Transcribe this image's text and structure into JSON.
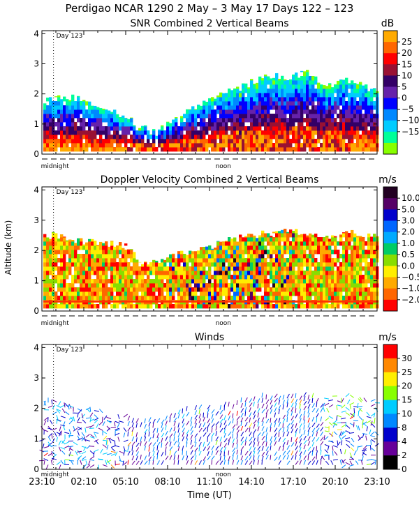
{
  "figure_title": "Perdigao NCAR 1290    2 May –  3 May 17 Days 122 – 123",
  "ylabel": "Altitude (km)",
  "xlabel": "Time (UT)",
  "xticks": [
    "23:10",
    "02:10",
    "05:10",
    "08:10",
    "11:10",
    "14:10",
    "17:10",
    "20:10",
    "23:10"
  ],
  "markers": {
    "day": "Day 123",
    "midnight": "midnight",
    "noon": "noon"
  },
  "colors": {
    "missing": "#ffffff",
    "axis": "#000000"
  },
  "chart_data": [
    {
      "type": "heatmap",
      "title": "SNR Combined 2 Vertical Beams",
      "ylim": [
        0,
        4.1
      ],
      "yticks": [
        "0",
        "1",
        "2",
        "3",
        "4"
      ],
      "colorbar": {
        "unit": "dB",
        "labels": [
          "25",
          "20",
          "15",
          "10",
          "5",
          "0",
          "−5",
          "−10",
          "−15"
        ],
        "colors": [
          "#ffaa00",
          "#ff6600",
          "#ff0000",
          "#991133",
          "#330066",
          "#6622aa",
          "#0000ff",
          "#0088ff",
          "#00ccff",
          "#00ff99",
          "#88ff00"
        ]
      },
      "profile": {
        "hours": [
          0,
          1,
          2,
          3,
          4,
          5,
          6,
          7,
          8,
          9,
          10,
          11,
          12,
          13,
          14,
          15,
          16,
          17,
          18,
          19,
          20,
          21,
          22,
          23,
          24
        ],
        "top_km": [
          1.8,
          1.9,
          1.9,
          1.8,
          1.5,
          1.5,
          1.2,
          0.9,
          0.7,
          1.0,
          1.3,
          1.6,
          1.8,
          2.0,
          2.2,
          2.4,
          2.6,
          2.6,
          2.6,
          2.7,
          2.4,
          2.3,
          2.5,
          2.2,
          2.2
        ]
      }
    },
    {
      "type": "heatmap",
      "title": "Doppler Velocity Combined 2 Vertical Beams",
      "ylim": [
        0,
        4.1
      ],
      "yticks": [
        "0",
        "1",
        "2",
        "3",
        "4"
      ],
      "colorbar": {
        "unit": "m/s",
        "labels": [
          "10.0",
          "5.0",
          "3.0",
          "2.0",
          "1.0",
          "0.5",
          "0.0",
          "−0.5",
          "−1.0",
          "−2.0"
        ],
        "colors": [
          "#220022",
          "#550066",
          "#0000cc",
          "#0066ff",
          "#00aaff",
          "#00cc66",
          "#88dd00",
          "#ffee00",
          "#ffaa00",
          "#ff6600",
          "#ff0000"
        ]
      },
      "profile": {
        "hours": [
          0,
          1,
          2,
          3,
          4,
          5,
          6,
          7,
          8,
          9,
          10,
          11,
          12,
          13,
          14,
          15,
          16,
          17,
          18,
          19,
          20,
          21,
          22,
          23,
          24
        ],
        "top_km": [
          2.5,
          2.5,
          2.4,
          2.3,
          2.3,
          2.2,
          2.2,
          1.6,
          1.6,
          1.8,
          1.9,
          2.0,
          2.1,
          2.3,
          2.4,
          2.5,
          2.6,
          2.6,
          2.6,
          2.6,
          2.5,
          2.4,
          2.6,
          2.5,
          2.4
        ]
      }
    },
    {
      "type": "scatter",
      "title": "Winds",
      "ylim": [
        0,
        4.1
      ],
      "yticks": [
        "0",
        "1",
        "2",
        "3",
        "4"
      ],
      "colorbar": {
        "unit": "m/s",
        "labels": [
          "30",
          "25",
          "20",
          "15",
          "10",
          "8",
          "4",
          "2",
          "0"
        ],
        "colors": [
          "#ff0000",
          "#ff8800",
          "#ffee00",
          "#88ff00",
          "#00ccff",
          "#0088ff",
          "#0000cc",
          "#660099",
          "#000000"
        ]
      },
      "profile": {
        "hours": [
          0,
          1,
          2,
          3,
          4,
          5,
          6,
          7,
          8,
          9,
          10,
          11,
          12,
          13,
          14,
          15,
          16,
          17,
          18,
          19,
          20,
          21,
          22,
          23,
          24
        ],
        "top_km": [
          2.4,
          2.3,
          2.2,
          2.1,
          2.0,
          1.8,
          1.8,
          1.5,
          1.6,
          1.8,
          1.9,
          2.0,
          2.0,
          2.1,
          2.2,
          2.3,
          2.4,
          2.4,
          2.4,
          2.4,
          2.3,
          2.4,
          2.5,
          2.3,
          2.2
        ]
      }
    }
  ]
}
